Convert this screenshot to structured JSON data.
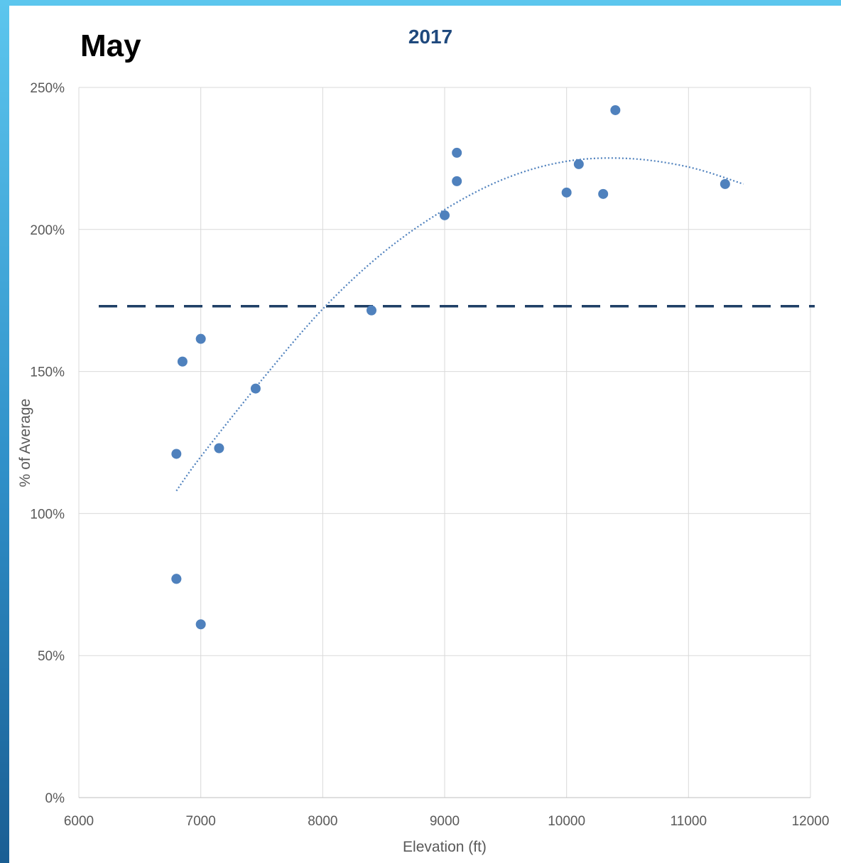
{
  "header": {
    "month": "May"
  },
  "chart_data": {
    "type": "scatter",
    "title": "2017",
    "xlabel": "Elevation (ft)",
    "ylabel": "% of Average",
    "xlim": [
      6000,
      12000
    ],
    "ylim": [
      0,
      250
    ],
    "x_ticks": [
      "6000",
      "7000",
      "8000",
      "9000",
      "10000",
      "11000",
      "12000"
    ],
    "y_ticks": [
      "0%",
      "50%",
      "100%",
      "150%",
      "200%",
      "250%"
    ],
    "x_tick_values": [
      6000,
      7000,
      8000,
      9000,
      10000,
      11000,
      12000
    ],
    "y_tick_values": [
      0,
      50,
      100,
      150,
      200,
      250
    ],
    "grid": true,
    "legend": "none",
    "series": [
      {
        "x": [
          6800,
          6850,
          7000,
          6800,
          7150,
          7450,
          6800,
          7000,
          8400,
          9000,
          9100,
          9100,
          10000,
          10100,
          10300,
          10400,
          11300
        ],
        "y": [
          121,
          153.5,
          161.5,
          77,
          123,
          144,
          77,
          61,
          171.5,
          205,
          227,
          217,
          213,
          223,
          212.5,
          242,
          216
        ]
      }
    ],
    "trendline": {
      "style": "dotted",
      "kind": "polynomial-2",
      "x": [
        6800,
        7000,
        7500,
        8000,
        8500,
        9000,
        9500,
        10000,
        10500,
        11000,
        11450
      ],
      "y": [
        108,
        120,
        147,
        172,
        192,
        207,
        218,
        224,
        225,
        222,
        216
      ]
    },
    "reference_line": {
      "y": 173,
      "style": "dashed"
    },
    "colors": {
      "points": "#4f81bd",
      "trendline": "#4f81bd",
      "reference": "#1f3f66",
      "title": "#1f497d",
      "grid": "#d9d9d9"
    }
  }
}
